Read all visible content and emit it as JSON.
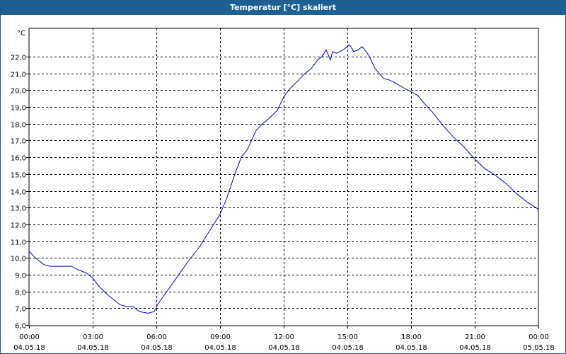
{
  "window": {
    "title": "Temperatur [°C] skaliert"
  },
  "chart_data": {
    "type": "line",
    "title": "Temperatur [°C] skaliert",
    "ylabel": "°C",
    "xlabel": "",
    "ylim": [
      6.0,
      22.9
    ],
    "yticks": [
      "6,0",
      "7,0",
      "8,0",
      "9,0",
      "10,0",
      "11,0",
      "12,0",
      "13,0",
      "14,0",
      "15,0",
      "16,0",
      "17,0",
      "18,0",
      "19,0",
      "20,0",
      "21,0",
      "22,0"
    ],
    "xticks": [
      {
        "time": "00:00",
        "date": "04.05.18"
      },
      {
        "time": "03:00",
        "date": "04.05.18"
      },
      {
        "time": "06:00",
        "date": "04.05.18"
      },
      {
        "time": "09:00",
        "date": "04.05.18"
      },
      {
        "time": "12:00",
        "date": "04.05.18"
      },
      {
        "time": "15:00",
        "date": "04.05.18"
      },
      {
        "time": "18:00",
        "date": "04.05.18"
      },
      {
        "time": "21:00",
        "date": "04.05.18"
      },
      {
        "time": "00:00",
        "date": "05.05.18"
      }
    ],
    "xlim_hours": [
      0,
      24
    ],
    "grid": true,
    "line_color": "#0000cc",
    "series": [
      {
        "x_hours": [
          0,
          0.3,
          0.7,
          1,
          1.5,
          2,
          2.3,
          2.7,
          3,
          3.3,
          3.7,
          4,
          4.3,
          4.6,
          4.9,
          5.2,
          5.6,
          5.9,
          6.1,
          6.5,
          7,
          7.5,
          8,
          8.5,
          9,
          9.3,
          9.7,
          10,
          10.3,
          10.7,
          11,
          11.3,
          11.7,
          12,
          12.3,
          12.7,
          13,
          13.3,
          13.6,
          13.8,
          14,
          14.2,
          14.3,
          14.5,
          14.8,
          15,
          15.1,
          15.3,
          15.5,
          15.7,
          16,
          16.3,
          16.7,
          17,
          17.3,
          17.7,
          18,
          18.3,
          18.7,
          19,
          19.5,
          20,
          20.5,
          21,
          21.5,
          22,
          22.5,
          23,
          23.5,
          24
        ],
        "values": [
          10.4,
          10,
          9.6,
          9.5,
          9.5,
          9.5,
          9.3,
          9.1,
          8.8,
          8.3,
          7.8,
          7.5,
          7.2,
          7.1,
          7.1,
          6.8,
          6.7,
          6.8,
          7.3,
          8,
          8.9,
          9.8,
          10.6,
          11.6,
          12.6,
          13.5,
          15,
          16,
          16.5,
          17.6,
          18,
          18.3,
          18.8,
          19.6,
          20.1,
          20.6,
          21,
          21.3,
          21.8,
          22,
          22.4,
          21.8,
          22.3,
          22.2,
          22.4,
          22.6,
          22.7,
          22.3,
          22.4,
          22.6,
          22.1,
          21.3,
          20.7,
          20.6,
          20.4,
          20.1,
          19.9,
          19.7,
          19.1,
          18.7,
          17.9,
          17.2,
          16.6,
          15.9,
          15.3,
          14.9,
          14.4,
          13.8,
          13.3,
          12.9
        ]
      }
    ]
  }
}
